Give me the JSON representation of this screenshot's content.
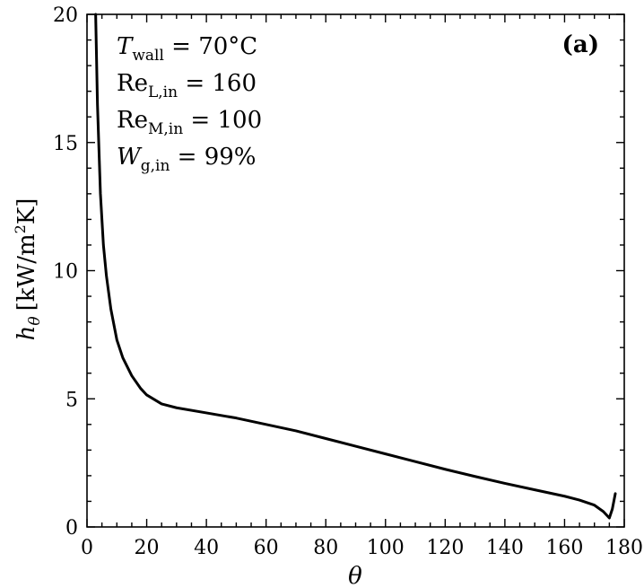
{
  "chart_data": {
    "type": "line",
    "panel_label": "(a)",
    "xlabel": "θ",
    "ylabel": {
      "symbol": "h",
      "subscript": "θ",
      "unit_open": "[kW/m",
      "unit_sup": "2",
      "unit_close": "K]"
    },
    "xlim": [
      0,
      180
    ],
    "ylim": [
      0,
      20
    ],
    "x_major_ticks": [
      0,
      20,
      40,
      60,
      80,
      100,
      120,
      140,
      160,
      180
    ],
    "y_major_ticks": [
      0,
      5,
      10,
      15,
      20
    ],
    "x_tick_labels": [
      "0",
      "20",
      "40",
      "60",
      "80",
      "100",
      "120",
      "140",
      "160",
      "180"
    ],
    "y_tick_labels": [
      "0",
      "5",
      "10",
      "15",
      "20"
    ],
    "grid": false,
    "annotations": [
      {
        "name": "T",
        "sub": "wall",
        "value": " = 70°C"
      },
      {
        "name": "Re",
        "sub": "L,in",
        "value": " = 160"
      },
      {
        "name": "Re",
        "sub": "M,in",
        "value": " = 100"
      },
      {
        "name": "W",
        "sub": "g,in",
        "value": " = 99%"
      }
    ],
    "series": [
      {
        "color": "#000000",
        "x": [
          2.9,
          3.5,
          4.5,
          5.5,
          6.5,
          8,
          10,
          12,
          15,
          18,
          20,
          25,
          30,
          40,
          50,
          60,
          70,
          80,
          90,
          100,
          110,
          120,
          130,
          140,
          150,
          160,
          165,
          170,
          173,
          175,
          176,
          177
        ],
        "y": [
          20,
          16.5,
          13.0,
          11.0,
          9.8,
          8.5,
          7.3,
          6.6,
          5.9,
          5.4,
          5.15,
          4.8,
          4.65,
          4.45,
          4.25,
          4.0,
          3.75,
          3.45,
          3.15,
          2.85,
          2.55,
          2.25,
          1.97,
          1.7,
          1.45,
          1.2,
          1.05,
          0.85,
          0.6,
          0.35,
          0.7,
          1.3
        ]
      }
    ]
  }
}
